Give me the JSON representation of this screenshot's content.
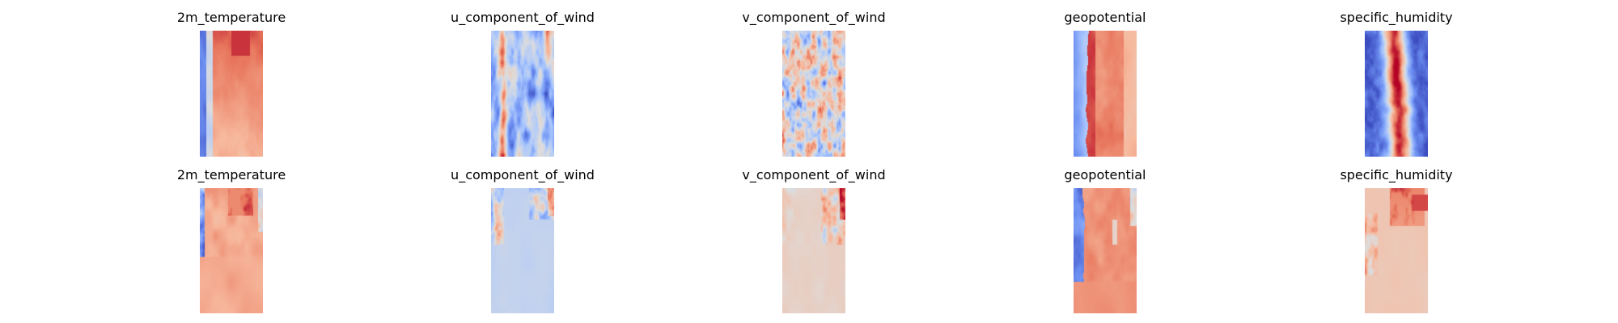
{
  "chart_data": {
    "type": "heatmap",
    "grid": false,
    "axes_visible": false,
    "colormap": "coolwarm",
    "colormap_stops": [
      "#3b4cc0",
      "#6f92f3",
      "#aac7fd",
      "#dddddd",
      "#f7b89c",
      "#e7745b",
      "#b40426"
    ],
    "rows": [
      {
        "panels": [
          {
            "title": "2m_temperature",
            "pattern": "temperature_full"
          },
          {
            "title": "u_component_of_wind",
            "pattern": "uwind_full"
          },
          {
            "title": "v_component_of_wind",
            "pattern": "vwind_full"
          },
          {
            "title": "geopotential",
            "pattern": "geopotential_full"
          },
          {
            "title": "specific_humidity",
            "pattern": "humidity_full"
          }
        ]
      },
      {
        "panels": [
          {
            "title": "2m_temperature",
            "pattern": "temperature_partial"
          },
          {
            "title": "u_component_of_wind",
            "pattern": "uwind_partial"
          },
          {
            "title": "v_component_of_wind",
            "pattern": "vwind_partial"
          },
          {
            "title": "geopotential",
            "pattern": "geopotential_partial"
          },
          {
            "title": "specific_humidity",
            "pattern": "humidity_partial"
          }
        ]
      }
    ]
  }
}
